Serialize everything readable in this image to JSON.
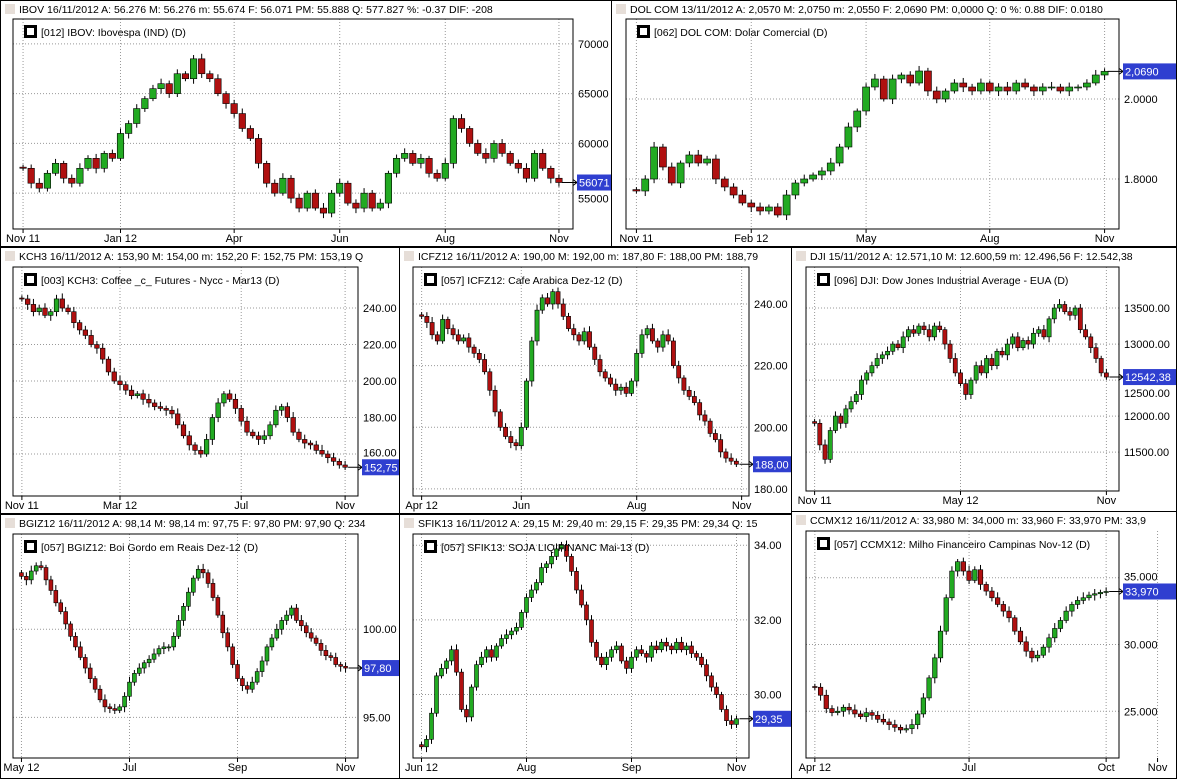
{
  "colors": {
    "up": "#22aa22",
    "down": "#b01010",
    "grid": "#999999",
    "last_bg": "#2f3fd0"
  },
  "chart_data": [
    {
      "id": "ibov",
      "type": "candlestick",
      "header": "IBOV   16/11/2012  A: 56.276   M: 56.276   m: 55.674   F: 56.071   PM: 55.888   Q: 577.827   %: -0.37  DIF: -208",
      "legend": "[012] IBOV: Ibovespa          (IND)      (D)",
      "last": "56071",
      "ylim": [
        51400,
        72500
      ],
      "yticks": [
        {
          "v": 70000,
          "label": "70000"
        },
        {
          "v": 65000,
          "label": "65000"
        },
        {
          "v": 60000,
          "label": "60000"
        },
        {
          "v": 55000,
          "label": "55000"
        }
      ],
      "xticks": [
        {
          "i": 0,
          "label": "Nov 11"
        },
        {
          "i": 12,
          "label": "Jan 12"
        },
        {
          "i": 26,
          "label": "Apr"
        },
        {
          "i": 39,
          "label": "Jun"
        },
        {
          "i": 52,
          "label": "Aug"
        },
        {
          "i": 66,
          "label": "Nov"
        }
      ],
      "close": [
        57500,
        56000,
        55500,
        57000,
        58000,
        56500,
        56000,
        57500,
        58500,
        57500,
        59000,
        58500,
        61000,
        62000,
        63500,
        64500,
        65500,
        66000,
        65000,
        67000,
        66500,
        68500,
        67000,
        66500,
        65000,
        64000,
        63000,
        61500,
        60500,
        58000,
        56000,
        55000,
        56500,
        54500,
        53500,
        55000,
        53500,
        53000,
        55000,
        56000,
        54000,
        53500,
        55000,
        53500,
        54000,
        57000,
        58500,
        59000,
        58000,
        58500,
        57000,
        56500,
        58000,
        62500,
        61500,
        60000,
        59000,
        58500,
        60000,
        59000,
        58000,
        57500,
        56500,
        59000,
        57500,
        56500,
        56071
      ]
    },
    {
      "id": "dol",
      "type": "candlestick",
      "header": "DOL COM   13/11/2012  A: 2,0570   M: 2,0750   m: 2,0550   F: 2,0690  PM: 0,0000  Q: 0  %: 0.88 DIF: 0.0180",
      "legend": "[062] DOL COM: Dolar Comercial (D)",
      "last": "2,0690",
      "ylim": [
        1.675,
        2.2
      ],
      "yticks": [
        {
          "v": 2.0,
          "label": "2.0000"
        },
        {
          "v": 1.8,
          "label": "1.8000"
        }
      ],
      "xticks": [
        {
          "i": 0,
          "label": "Nov 11"
        },
        {
          "i": 13,
          "label": "Feb 12"
        },
        {
          "i": 26,
          "label": "May"
        },
        {
          "i": 40,
          "label": "Aug"
        },
        {
          "i": 53,
          "label": "Nov"
        }
      ],
      "close": [
        1.77,
        1.8,
        1.88,
        1.83,
        1.79,
        1.84,
        1.86,
        1.84,
        1.85,
        1.8,
        1.78,
        1.76,
        1.74,
        1.73,
        1.72,
        1.73,
        1.71,
        1.76,
        1.79,
        1.8,
        1.81,
        1.82,
        1.84,
        1.88,
        1.93,
        1.97,
        2.03,
        2.05,
        2.0,
        2.05,
        2.06,
        2.04,
        2.07,
        2.02,
        2.0,
        2.02,
        2.04,
        2.03,
        2.02,
        2.04,
        2.02,
        2.03,
        2.02,
        2.04,
        2.03,
        2.02,
        2.03,
        2.03,
        2.02,
        2.03,
        2.03,
        2.04,
        2.06,
        2.069
      ]
    },
    {
      "id": "kch3",
      "type": "candlestick",
      "header": "KCH3   16/11/2012  A: 153,90   M: 154,00   m: 152,20   F: 152,75   PM: 153,19   Q",
      "legend": "[003] KCH3: Coffee _c_ Futures - Nycc - Mar13      (D)",
      "last": "152,75",
      "ylim": [
        137,
        262.5
      ],
      "yticks": [
        {
          "v": 240,
          "label": "240.00"
        },
        {
          "v": 220,
          "label": "220.00"
        },
        {
          "v": 200,
          "label": "200.00"
        },
        {
          "v": 180,
          "label": "180.00"
        },
        {
          "v": 160,
          "label": "160.00"
        }
      ],
      "xticks": [
        {
          "i": 0,
          "label": "Nov 11"
        },
        {
          "i": 17,
          "label": "Mar 12"
        },
        {
          "i": 38,
          "label": "Jul"
        },
        {
          "i": 56,
          "label": "Nov"
        }
      ],
      "close": [
        245,
        242,
        238,
        240,
        236,
        238,
        245,
        240,
        238,
        232,
        228,
        225,
        220,
        218,
        212,
        205,
        200,
        198,
        195,
        192,
        193,
        190,
        188,
        186,
        185,
        184,
        182,
        176,
        170,
        165,
        162,
        160,
        168,
        180,
        188,
        193,
        190,
        185,
        178,
        172,
        170,
        168,
        170,
        176,
        184,
        186,
        180,
        172,
        168,
        166,
        165,
        162,
        160,
        158,
        156,
        154,
        152.75
      ]
    },
    {
      "id": "icfz12",
      "type": "candlestick",
      "header": "ICFZ12   16/11/2012  A: 190,00   M: 192,00   m: 187,80   F: 188,00   PM: 188,79",
      "legend": "[057] ICFZ12: Cafe Arabica Dez-12      (D)",
      "last": "188,00",
      "ylim": [
        177.7,
        252
      ],
      "yticks": [
        {
          "v": 240,
          "label": "240.00"
        },
        {
          "v": 220,
          "label": "220.00"
        },
        {
          "v": 200,
          "label": "200.00"
        },
        {
          "v": 180,
          "label": "180.00"
        }
      ],
      "xticks": [
        {
          "i": 0,
          "label": "Apr 12"
        },
        {
          "i": 19,
          "label": "Jun"
        },
        {
          "i": 41,
          "label": "Aug"
        },
        {
          "i": 61,
          "label": "Nov"
        }
      ],
      "close": [
        236,
        234,
        230,
        228,
        235,
        232,
        230,
        228,
        229,
        226,
        224,
        222,
        218,
        212,
        205,
        200,
        197,
        195,
        194,
        200,
        215,
        228,
        238,
        242,
        240,
        244,
        240,
        236,
        232,
        230,
        228,
        231,
        226,
        222,
        218,
        216,
        214,
        212,
        213,
        211,
        215,
        224,
        230,
        232,
        228,
        226,
        230,
        228,
        220,
        216,
        212,
        210,
        208,
        204,
        202,
        198,
        196,
        192,
        190,
        189,
        188
      ]
    },
    {
      "id": "dji",
      "type": "candlestick",
      "header": "DJI   15/11/2012  A: 12.571,10   M: 12.600,59   m: 12.496,56   F: 12.542,38",
      "legend": "[096] DJI: Dow Jones Industrial Average - EUA      (D)",
      "last": "12542,38",
      "ylim": [
        10960,
        14070
      ],
      "yticks": [
        {
          "v": 13500,
          "label": "13500.00"
        },
        {
          "v": 13000,
          "label": "13000.00"
        },
        {
          "v": 12500,
          "label": "12500.00"
        },
        {
          "v": 12000,
          "label": "12000.00"
        },
        {
          "v": 11500,
          "label": "11500.00"
        }
      ],
      "xticks": [
        {
          "i": 0,
          "label": "Nov 11"
        },
        {
          "i": 28,
          "label": "May 12"
        },
        {
          "i": 56,
          "label": "Nov"
        }
      ],
      "close": [
        11900,
        11600,
        11400,
        11800,
        12000,
        11900,
        12100,
        12200,
        12300,
        12500,
        12600,
        12700,
        12800,
        12850,
        12900,
        13000,
        12950,
        13100,
        13200,
        13150,
        13250,
        13200,
        13100,
        13250,
        13200,
        13000,
        12800,
        12600,
        12450,
        12300,
        12500,
        12700,
        12600,
        12800,
        12700,
        12900,
        12850,
        13000,
        13100,
        12950,
        13050,
        13000,
        13150,
        13200,
        13100,
        13350,
        13500,
        13550,
        13450,
        13400,
        13500,
        13200,
        13100,
        12950,
        12800,
        12600,
        12542
      ]
    },
    {
      "id": "bgiz12",
      "type": "candlestick",
      "header": "BGIZ12   16/11/2012  A: 98,14   M: 98,14   m: 97,75   F: 97,80   PM: 97,90   Q: 234",
      "legend": "[057] BGIZ12: Boi Gordo em Reais Dez-12      (D)",
      "last": "97,80",
      "ylim": [
        92.7,
        105.4
      ],
      "yticks": [
        {
          "v": 100,
          "label": "100.00"
        },
        {
          "v": 95,
          "label": "95.00"
        }
      ],
      "xticks": [
        {
          "i": 0,
          "label": "May 12"
        },
        {
          "i": 22,
          "label": "Jul"
        },
        {
          "i": 44,
          "label": "Sep"
        },
        {
          "i": 66,
          "label": "Nov"
        }
      ],
      "close": [
        103,
        102.8,
        103.3,
        103.6,
        103.5,
        102.8,
        102.2,
        101.5,
        101,
        100.3,
        99.6,
        99,
        98.4,
        97.8,
        97.2,
        96.6,
        96,
        95.6,
        95.5,
        95.4,
        95.6,
        96.2,
        97,
        97.5,
        97.8,
        98.1,
        98.3,
        98.6,
        98.9,
        99,
        99,
        99.6,
        100.5,
        101.3,
        102.1,
        102.9,
        103.4,
        103.2,
        102.6,
        101.8,
        100.8,
        99.8,
        99,
        98,
        97.2,
        96.8,
        96.6,
        97,
        97.6,
        98.2,
        99,
        99.5,
        100,
        100.5,
        100.8,
        101.2,
        100.5,
        100.2,
        99.8,
        99.5,
        99.2,
        98.8,
        98.5,
        98.4,
        98,
        97.9,
        97.8
      ]
    },
    {
      "id": "sfik13",
      "type": "candlestick",
      "header": "SFIK13   16/11/2012  A: 29,15   M: 29,40   m: 29,15   F: 29,35   PM: 29,34   Q: 15",
      "legend": "[057] SFIK13: SOJA LIQ FINANC Mai-13      (D)",
      "last": "29,35",
      "ylim": [
        28.3,
        34.3
      ],
      "yticks": [
        {
          "v": 34,
          "label": "34.00"
        },
        {
          "v": 32,
          "label": "32.00"
        },
        {
          "v": 30,
          "label": "30.00"
        }
      ],
      "xticks": [
        {
          "i": 0,
          "label": "Jun 12"
        },
        {
          "i": 21,
          "label": "Aug"
        },
        {
          "i": 42,
          "label": "Sep"
        },
        {
          "i": 63,
          "label": "Nov"
        }
      ],
      "close": [
        28.6,
        28.8,
        29.5,
        30.5,
        30.7,
        30.9,
        31.2,
        30.6,
        29.6,
        29.4,
        30.2,
        30.8,
        31,
        31.2,
        31,
        31.3,
        31.5,
        31.6,
        31.7,
        31.8,
        32.2,
        32.6,
        32.8,
        33,
        33.4,
        33.5,
        33.7,
        33.9,
        34,
        33.7,
        33.3,
        32.8,
        32.4,
        32,
        31.4,
        31,
        30.8,
        31,
        31.2,
        31.3,
        30.9,
        30.7,
        31,
        31.2,
        31.1,
        31,
        31.3,
        31.2,
        31.4,
        31.3,
        31.2,
        31.4,
        31.2,
        31.3,
        31.1,
        31,
        30.8,
        30.5,
        30.2,
        30,
        29.6,
        29.3,
        29.2,
        29.35
      ]
    },
    {
      "id": "ccmx12",
      "type": "candlestick",
      "header": "CCMX12   16/11/2012  A: 33,980   M: 34,000   m: 33,960   F: 33,970   PM: 33,9",
      "legend": "[057] CCMX12: Milho Financeiro Campinas Nov-12      (D)",
      "last": "33,970",
      "ylim": [
        21.5,
        38.5
      ],
      "yticks": [
        {
          "v": 35,
          "label": "35.000"
        },
        {
          "v": 30,
          "label": "30.000"
        },
        {
          "v": 25,
          "label": "25.000"
        }
      ],
      "xticks": [
        {
          "i": 0,
          "label": "Apr 12"
        },
        {
          "i": 27,
          "label": "Jul"
        },
        {
          "i": 51,
          "label": "Oct"
        },
        {
          "i": 60,
          "label": "Nov"
        }
      ],
      "close": [
        26.8,
        26.2,
        25.2,
        24.9,
        25,
        25.3,
        25.1,
        24.8,
        24.6,
        24.9,
        24.7,
        24.4,
        24.2,
        24,
        23.8,
        23.6,
        23.7,
        24,
        24.8,
        26,
        27.5,
        29,
        31,
        33.5,
        35.5,
        36.2,
        35.5,
        34.8,
        35.6,
        34.5,
        34,
        33.5,
        33,
        32.5,
        32,
        31,
        30.2,
        29.5,
        29,
        29.2,
        29.8,
        30.5,
        31.2,
        31.8,
        32.5,
        33,
        33.3,
        33.5,
        33.7,
        33.8,
        33.9,
        33.97
      ]
    }
  ]
}
